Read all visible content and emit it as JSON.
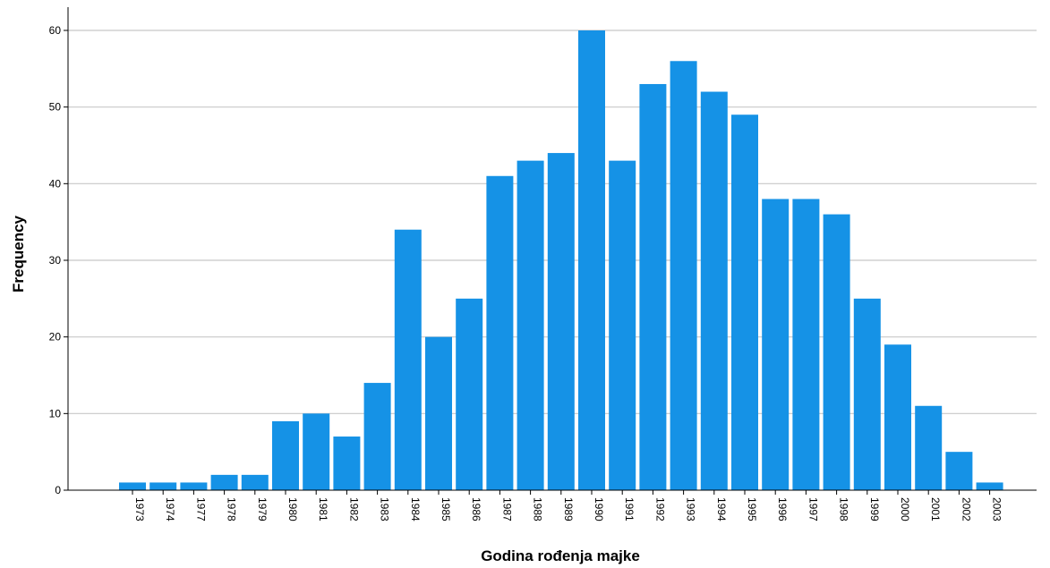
{
  "chart_data": {
    "type": "bar",
    "xlabel": "Godina rođenja majke",
    "ylabel": "Frequency",
    "categories": [
      "1973",
      "1974",
      "1977",
      "1978",
      "1979",
      "1980",
      "1981",
      "1982",
      "1983",
      "1984",
      "1985",
      "1986",
      "1987",
      "1988",
      "1989",
      "1990",
      "1991",
      "1992",
      "1993",
      "1994",
      "1995",
      "1996",
      "1997",
      "1998",
      "1999",
      "2000",
      "2001",
      "2002",
      "2003"
    ],
    "values": [
      1,
      1,
      1,
      2,
      2,
      9,
      10,
      7,
      14,
      34,
      20,
      25,
      41,
      43,
      44,
      60,
      43,
      53,
      56,
      52,
      49,
      38,
      38,
      36,
      25,
      19,
      11,
      5,
      1
    ],
    "yticks": [
      0,
      10,
      20,
      30,
      40,
      50,
      60
    ],
    "ylim": [
      0,
      63
    ],
    "grid": true,
    "bar_color": "#1592e6",
    "grid_color": "#c8c8c8"
  }
}
